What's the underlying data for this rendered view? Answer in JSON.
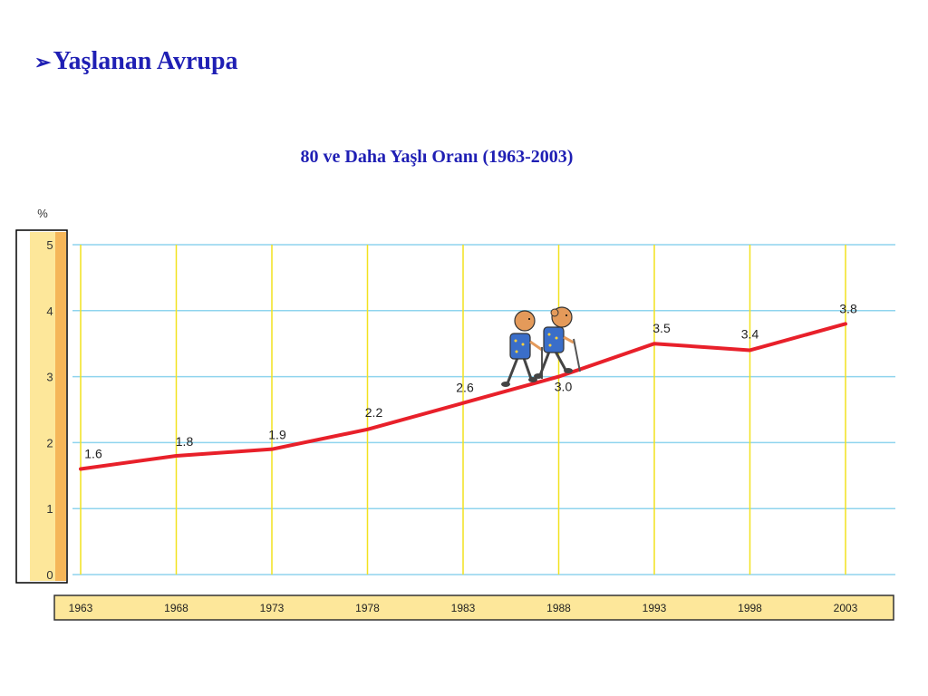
{
  "slide": {
    "bullet": "➢",
    "title": "Yaşlanan Avrupa"
  },
  "chart_data": {
    "type": "line",
    "title": "80 ve Daha Yaşlı Oranı (1963-2003)",
    "ylabel": "%",
    "xlabel": "",
    "categories": [
      "1963",
      "1968",
      "1973",
      "1978",
      "1983",
      "1988",
      "1993",
      "1998",
      "2003"
    ],
    "values": [
      1.6,
      1.8,
      1.9,
      2.2,
      2.6,
      3.0,
      3.5,
      3.4,
      3.8
    ],
    "data_labels": [
      "1.6",
      "1.8",
      "1.9",
      "2.2",
      "2.6",
      "3.0",
      "3.5",
      "3.4",
      "3.8"
    ],
    "y_ticks": [
      "0",
      "1",
      "2",
      "3",
      "4",
      "5"
    ],
    "ylim": [
      0,
      5
    ],
    "grid": true,
    "legend": "none",
    "colors": {
      "line": "#e8202a",
      "horizontal_grid": "#8fd4ee",
      "vertical_grid": "#f2e21f",
      "axis_band": "#fde79a",
      "axis_band_edge": "#f5b659",
      "x_band": "#fde79a",
      "text": "#1f1fb4"
    },
    "decoration": "two-elderly-hikers-illustration"
  }
}
